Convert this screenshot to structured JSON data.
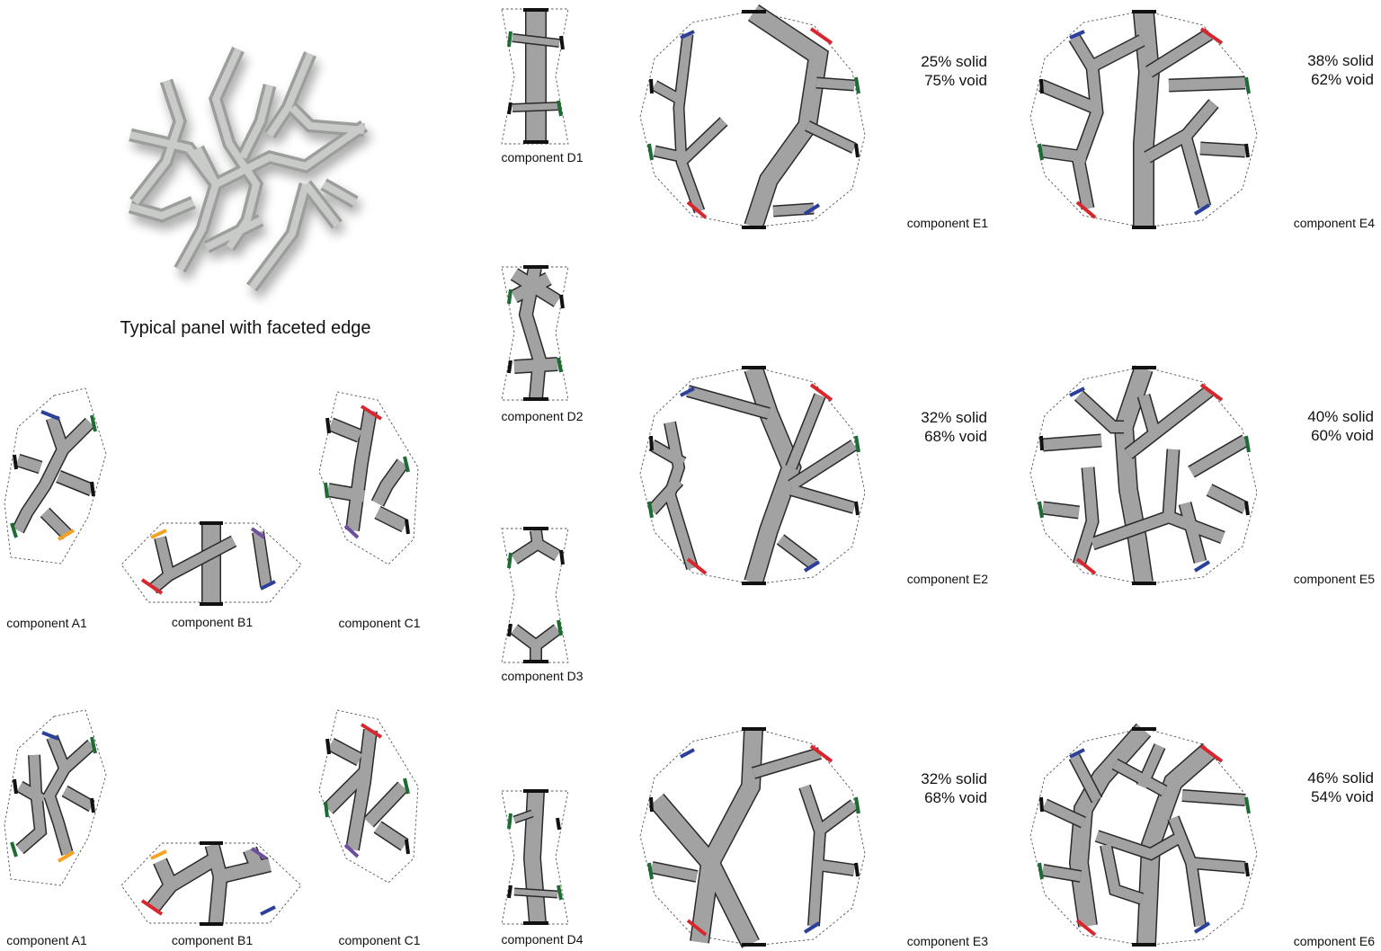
{
  "palette": {
    "branch_fill": "#a2a2a2",
    "branch_edge": "#2a2a2a",
    "port_black": "#111111",
    "port_red": "#d7262e",
    "port_green": "#1f6b34",
    "port_blue": "#2b3f9b",
    "port_orange": "#f4a224",
    "port_purple": "#6d4fa0"
  },
  "hero": {
    "title": "Typical panel with faceted edge",
    "icon": "faceted-panel-render"
  },
  "components": {
    "a1_top": "component A1",
    "b1_top": "component B1",
    "c1_top": "component C1",
    "a1_bottom": "component A1",
    "b1_bottom": "component B1",
    "c1_bottom": "component C1",
    "d1": "component D1",
    "d2": "component D2",
    "d3": "component D3",
    "d4": "component D4",
    "e1": "component E1",
    "e2": "component E2",
    "e3": "component E3",
    "e4": "component E4",
    "e5": "component E5",
    "e6": "component E6"
  },
  "ratios": {
    "e1": {
      "solid": "25% solid",
      "void": "75% void"
    },
    "e2": {
      "solid": "32% solid",
      "void": "68% void"
    },
    "e3": {
      "solid": "32% solid",
      "void": "68% void"
    },
    "e4": {
      "solid": "38% solid",
      "void": "62% void"
    },
    "e5": {
      "solid": "40% solid",
      "void": "60% void"
    },
    "e6": {
      "solid": "46% solid",
      "void": "54% void"
    }
  }
}
